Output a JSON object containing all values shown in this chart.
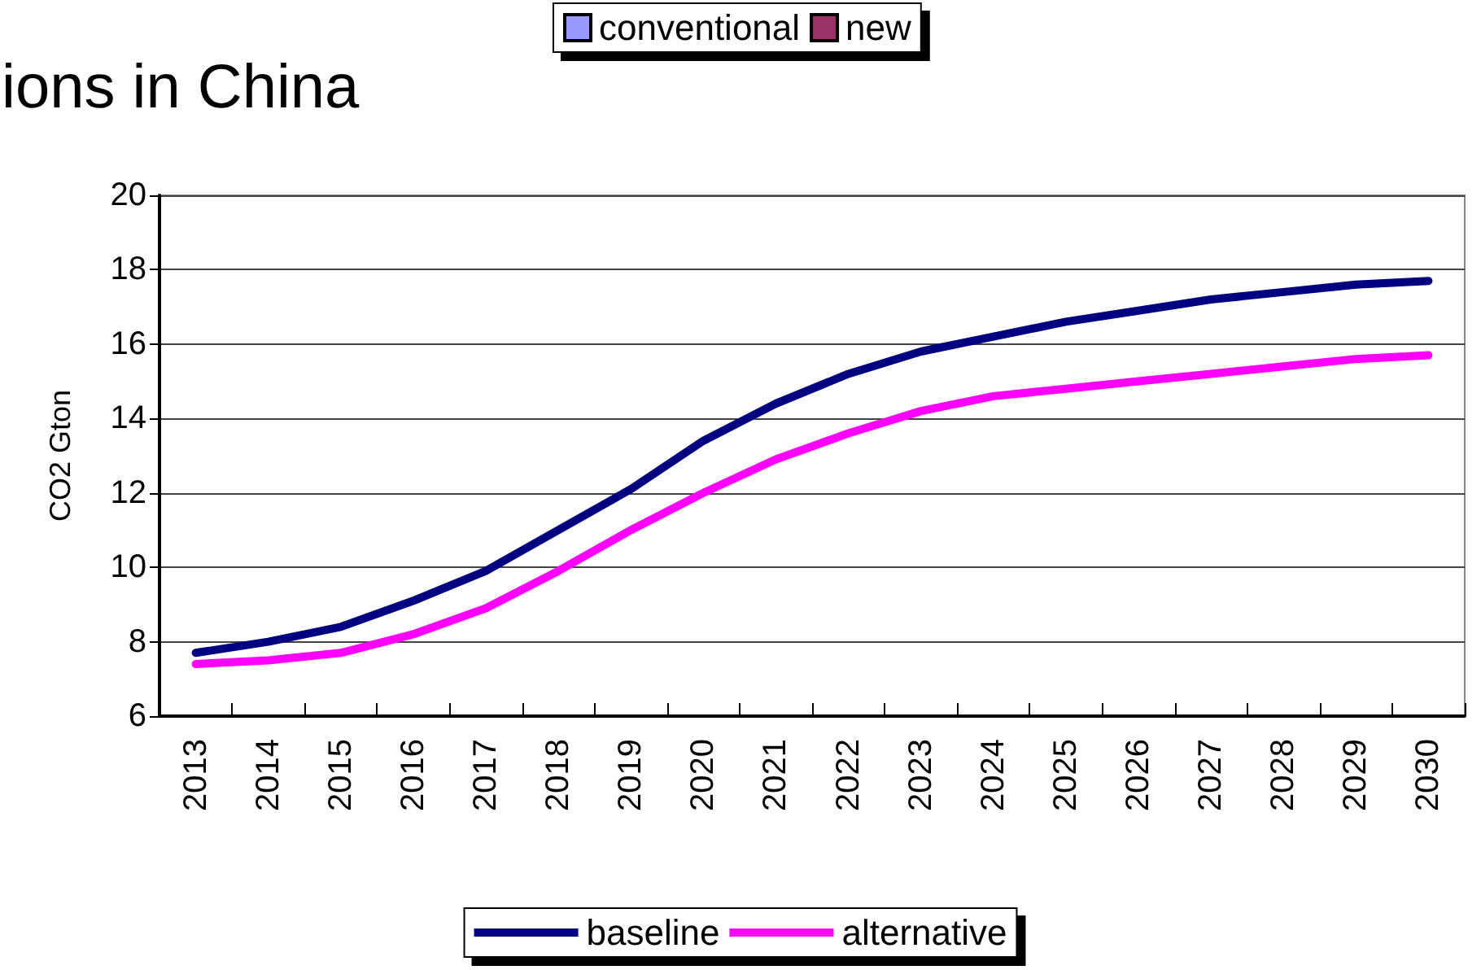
{
  "chart_data": {
    "type": "line",
    "title": "ions in China",
    "ylabel": "CO2 Gton",
    "categories": [
      "2013",
      "2014",
      "2015",
      "2016",
      "2017",
      "2018",
      "2019",
      "2020",
      "2021",
      "2022",
      "2023",
      "2024",
      "2025",
      "2026",
      "2027",
      "2028",
      "2029",
      "2030"
    ],
    "series": [
      {
        "name": "conventional",
        "type": "bar",
        "color": "#9999ff",
        "values": [
          null,
          null,
          null,
          null,
          null,
          null,
          null,
          null,
          null,
          null,
          null,
          null,
          null,
          null,
          null,
          null,
          null,
          null
        ]
      },
      {
        "name": "new",
        "type": "bar",
        "color": "#993366",
        "values": [
          null,
          null,
          null,
          null,
          null,
          null,
          null,
          null,
          null,
          null,
          null,
          null,
          null,
          null,
          null,
          null,
          null,
          null
        ]
      },
      {
        "name": "baseline",
        "color": "#000080",
        "values": [
          7.7,
          8.0,
          8.4,
          9.1,
          9.9,
          11.0,
          12.1,
          13.4,
          14.4,
          15.2,
          15.8,
          16.2,
          16.6,
          16.9,
          17.2,
          17.4,
          17.6,
          17.7
        ]
      },
      {
        "name": "alternative",
        "color": "#ff00ff",
        "values": [
          7.4,
          7.5,
          7.7,
          8.2,
          8.9,
          9.9,
          11.0,
          12.0,
          12.9,
          13.6,
          14.2,
          14.6,
          14.8,
          15.0,
          15.2,
          15.4,
          15.6,
          15.7
        ]
      }
    ],
    "ylim": [
      6,
      20
    ],
    "yticks": [
      6,
      8,
      10,
      12,
      14,
      16,
      18,
      20
    ],
    "grid": "y",
    "legend": "bottom",
    "marker": "none",
    "line_style": "solid"
  }
}
